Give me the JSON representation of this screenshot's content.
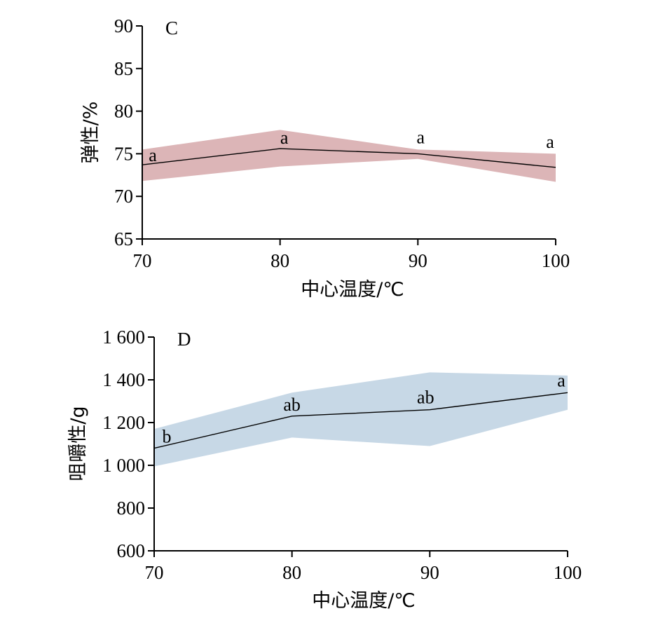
{
  "chart_data": [
    {
      "type": "line",
      "panel_label": "C",
      "xlabel": "中心温度/℃",
      "ylabel": "弹性/%",
      "x": [
        70,
        80,
        90,
        100
      ],
      "x_ticks": [
        "70",
        "80",
        "90",
        "100"
      ],
      "xlim": [
        70,
        100
      ],
      "y_ticks": [
        "65",
        "70",
        "75",
        "80",
        "85",
        "90"
      ],
      "ylim": [
        65,
        90
      ],
      "series": [
        {
          "values": [
            73.7,
            75.6,
            75.0,
            73.4
          ],
          "band_upper": [
            75.5,
            77.8,
            75.5,
            75.0
          ],
          "band_lower": [
            71.8,
            73.5,
            74.4,
            71.7
          ],
          "significance": [
            "a",
            "a",
            "a",
            "a"
          ]
        }
      ],
      "band_color": "#dcb5b7",
      "grid": false
    },
    {
      "type": "line",
      "panel_label": "D",
      "xlabel": "中心温度/℃",
      "ylabel": "咀嚼性/g",
      "x": [
        70,
        80,
        90,
        100
      ],
      "x_ticks": [
        "70",
        "80",
        "90",
        "100"
      ],
      "xlim": [
        70,
        100
      ],
      "y_ticks": [
        "600",
        "800",
        "1 000",
        "1 200",
        "1 400",
        "1 600"
      ],
      "ylim": [
        600,
        1600
      ],
      "series": [
        {
          "values": [
            1080,
            1230,
            1260,
            1340
          ],
          "band_upper": [
            1170,
            1340,
            1435,
            1420
          ],
          "band_lower": [
            995,
            1130,
            1090,
            1260
          ],
          "significance": [
            "b",
            "ab",
            "ab",
            "a"
          ]
        }
      ],
      "band_color": "#c7d8e6",
      "grid": false
    }
  ]
}
